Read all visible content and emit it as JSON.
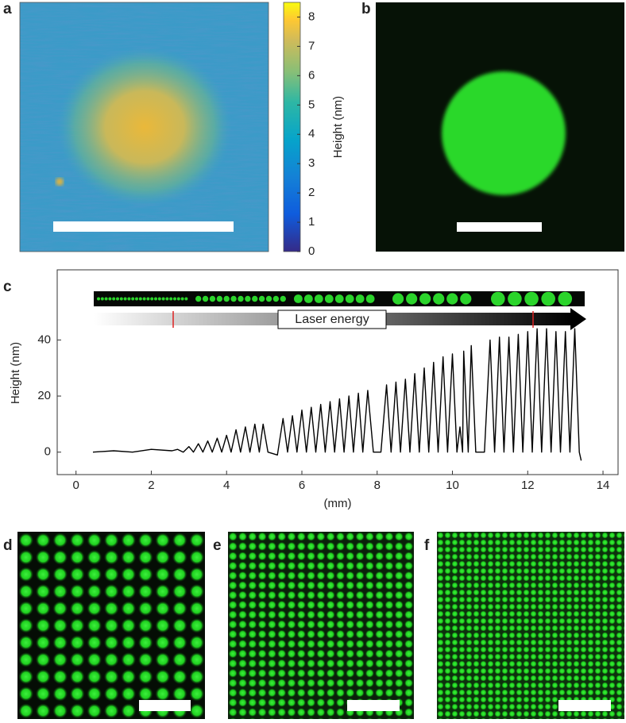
{
  "panel_labels": [
    "a",
    "b",
    "c",
    "d",
    "e",
    "f"
  ],
  "panel_a": {
    "colorbar": {
      "label": "Height (nm)",
      "lim": [
        0,
        8.5
      ],
      "ticks": [
        0,
        1,
        2,
        3,
        4,
        5,
        6,
        7,
        8
      ]
    }
  },
  "chart_data": {
    "type": "line",
    "xlabel": "(mm)",
    "ylabel": "Height (nm)",
    "annotation": "Laser energy",
    "color": "#000000",
    "x": [
      0.45,
      1.0,
      1.5,
      2.0,
      2.55,
      2.7,
      2.85,
      3.0,
      3.12,
      3.25,
      3.37,
      3.5,
      3.62,
      3.75,
      3.87,
      4.0,
      4.12,
      4.25,
      4.37,
      4.5,
      4.62,
      4.75,
      4.87,
      4.97,
      5.1,
      5.35,
      5.5,
      5.62,
      5.75,
      5.87,
      6.0,
      6.12,
      6.25,
      6.37,
      6.5,
      6.62,
      6.75,
      6.87,
      7.0,
      7.12,
      7.25,
      7.37,
      7.5,
      7.62,
      7.75,
      7.9,
      8.1,
      8.25,
      8.37,
      8.5,
      8.62,
      8.75,
      8.87,
      9.0,
      9.12,
      9.25,
      9.37,
      9.5,
      9.62,
      9.75,
      9.87,
      10.0,
      10.12,
      10.2,
      10.27,
      10.3,
      10.42,
      10.5,
      10.62,
      10.85,
      11.0,
      11.12,
      11.25,
      11.37,
      11.5,
      11.62,
      11.75,
      11.87,
      12.0,
      12.12,
      12.25,
      12.37,
      12.5,
      12.62,
      12.75,
      12.87,
      13.0,
      13.12,
      13.25,
      13.37,
      13.42
    ],
    "values": [
      0,
      0.5,
      0,
      1,
      0.5,
      1,
      0,
      2,
      0,
      3,
      0,
      4,
      0,
      5,
      0,
      6,
      0,
      8,
      0,
      9,
      0,
      10,
      0,
      10,
      0,
      -1,
      12,
      0,
      13,
      0,
      15,
      0,
      16,
      0,
      17,
      0,
      18,
      0,
      19,
      0,
      20,
      0,
      21,
      0,
      22,
      0,
      0,
      24,
      0,
      25,
      0,
      26,
      0,
      28,
      0,
      30,
      0,
      32,
      0,
      34,
      0,
      35,
      0,
      9,
      0,
      36,
      0,
      38,
      0,
      0,
      40,
      0,
      41,
      0,
      41,
      0,
      42,
      0,
      43,
      0,
      44,
      0,
      44,
      0,
      43,
      0,
      43,
      0,
      44,
      0,
      -3
    ],
    "xlim": [
      -0.5,
      14.4
    ],
    "ylim": [
      -8,
      65
    ],
    "xticks": [
      0,
      2,
      4,
      6,
      8,
      10,
      12,
      14
    ],
    "yticks": [
      0,
      20,
      40
    ]
  }
}
